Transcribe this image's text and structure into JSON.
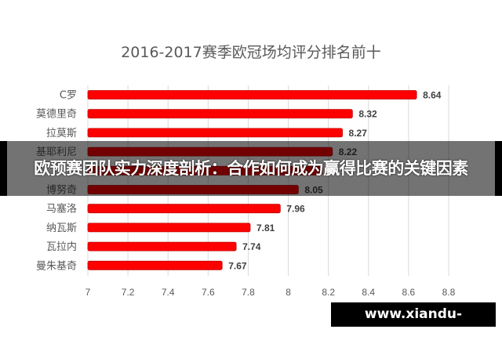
{
  "chart_data": {
    "type": "bar",
    "orientation": "horizontal",
    "title": "2016-2017赛季欧冠场均评分排名前十",
    "categories": [
      "C罗",
      "莫德里奇",
      "拉莫斯",
      "基耶利尼",
      "",
      "博努奇",
      "马塞洛",
      "纳瓦斯",
      "瓦拉内",
      "曼朱基奇"
    ],
    "values": [
      8.64,
      8.32,
      8.27,
      8.22,
      8.17,
      8.05,
      7.96,
      7.81,
      7.74,
      7.67
    ],
    "data_labels": [
      "8.64",
      "8.32",
      "8.27",
      "8.22",
      "",
      "8.05",
      "7.96",
      "7.81",
      "7.74",
      "7.67"
    ],
    "xlim": [
      7,
      8.8
    ],
    "x_ticks": [
      "7",
      "7.2",
      "7.4",
      "7.6",
      "7.8",
      "8",
      "8.2",
      "8.4",
      "8.6",
      "8.8"
    ],
    "grid": true,
    "bar_color": "#ff0000"
  },
  "banner": {
    "headline": "欧预赛团队实力深度剖析：合作如何成为赢得比赛的关键因素"
  },
  "watermark": {
    "text": "www.xiandu-china.com"
  }
}
